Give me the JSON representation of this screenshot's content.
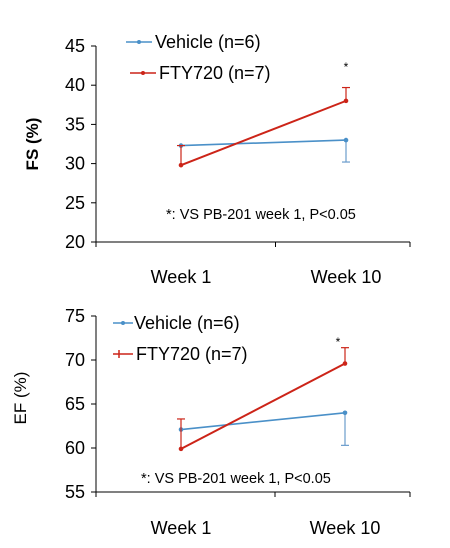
{
  "colors": {
    "vehicle": "#4a90c8",
    "fty": "#cc2418",
    "axis": "#000000",
    "error": "#6a9ccc"
  },
  "chart_data": [
    {
      "type": "line",
      "ylabel": "FS (%)",
      "ylim": [
        20,
        45
      ],
      "yticks": [
        "20",
        "25",
        "30",
        "35",
        "40",
        "45"
      ],
      "categories": [
        "Week 1",
        "Week 10"
      ],
      "series": [
        {
          "name": "Vehicle (n=6)",
          "values": [
            32.3,
            33.0
          ],
          "err_down": [
            0,
            2.8
          ],
          "err_up": [
            0,
            0
          ]
        },
        {
          "name": "FTY720 (n=7)",
          "values": [
            29.8,
            38.0
          ],
          "err_down": [
            0,
            0
          ],
          "err_up": [
            2.5,
            1.7
          ]
        }
      ],
      "annotations": [
        "*",
        "*: VS PB-201 week 1, P<0.05"
      ],
      "legend": "top-left",
      "grid": false
    },
    {
      "type": "line",
      "ylabel": "EF (%)",
      "ylim": [
        55,
        75
      ],
      "yticks": [
        "55",
        "60",
        "65",
        "70",
        "75"
      ],
      "categories": [
        "Week 1",
        "Week 10"
      ],
      "series": [
        {
          "name": "Vehicle (n=6)",
          "values": [
            62.1,
            64.0
          ],
          "err_down": [
            0,
            3.7
          ],
          "err_up": [
            0,
            0
          ]
        },
        {
          "name": "FTY720 (n=7)",
          "values": [
            59.9,
            69.6
          ],
          "err_down": [
            0,
            0
          ],
          "err_up": [
            3.4,
            1.8
          ]
        }
      ],
      "annotations": [
        "*",
        "*: VS PB-201 week 1, P<0.05"
      ],
      "legend": "top-left",
      "grid": false
    }
  ]
}
